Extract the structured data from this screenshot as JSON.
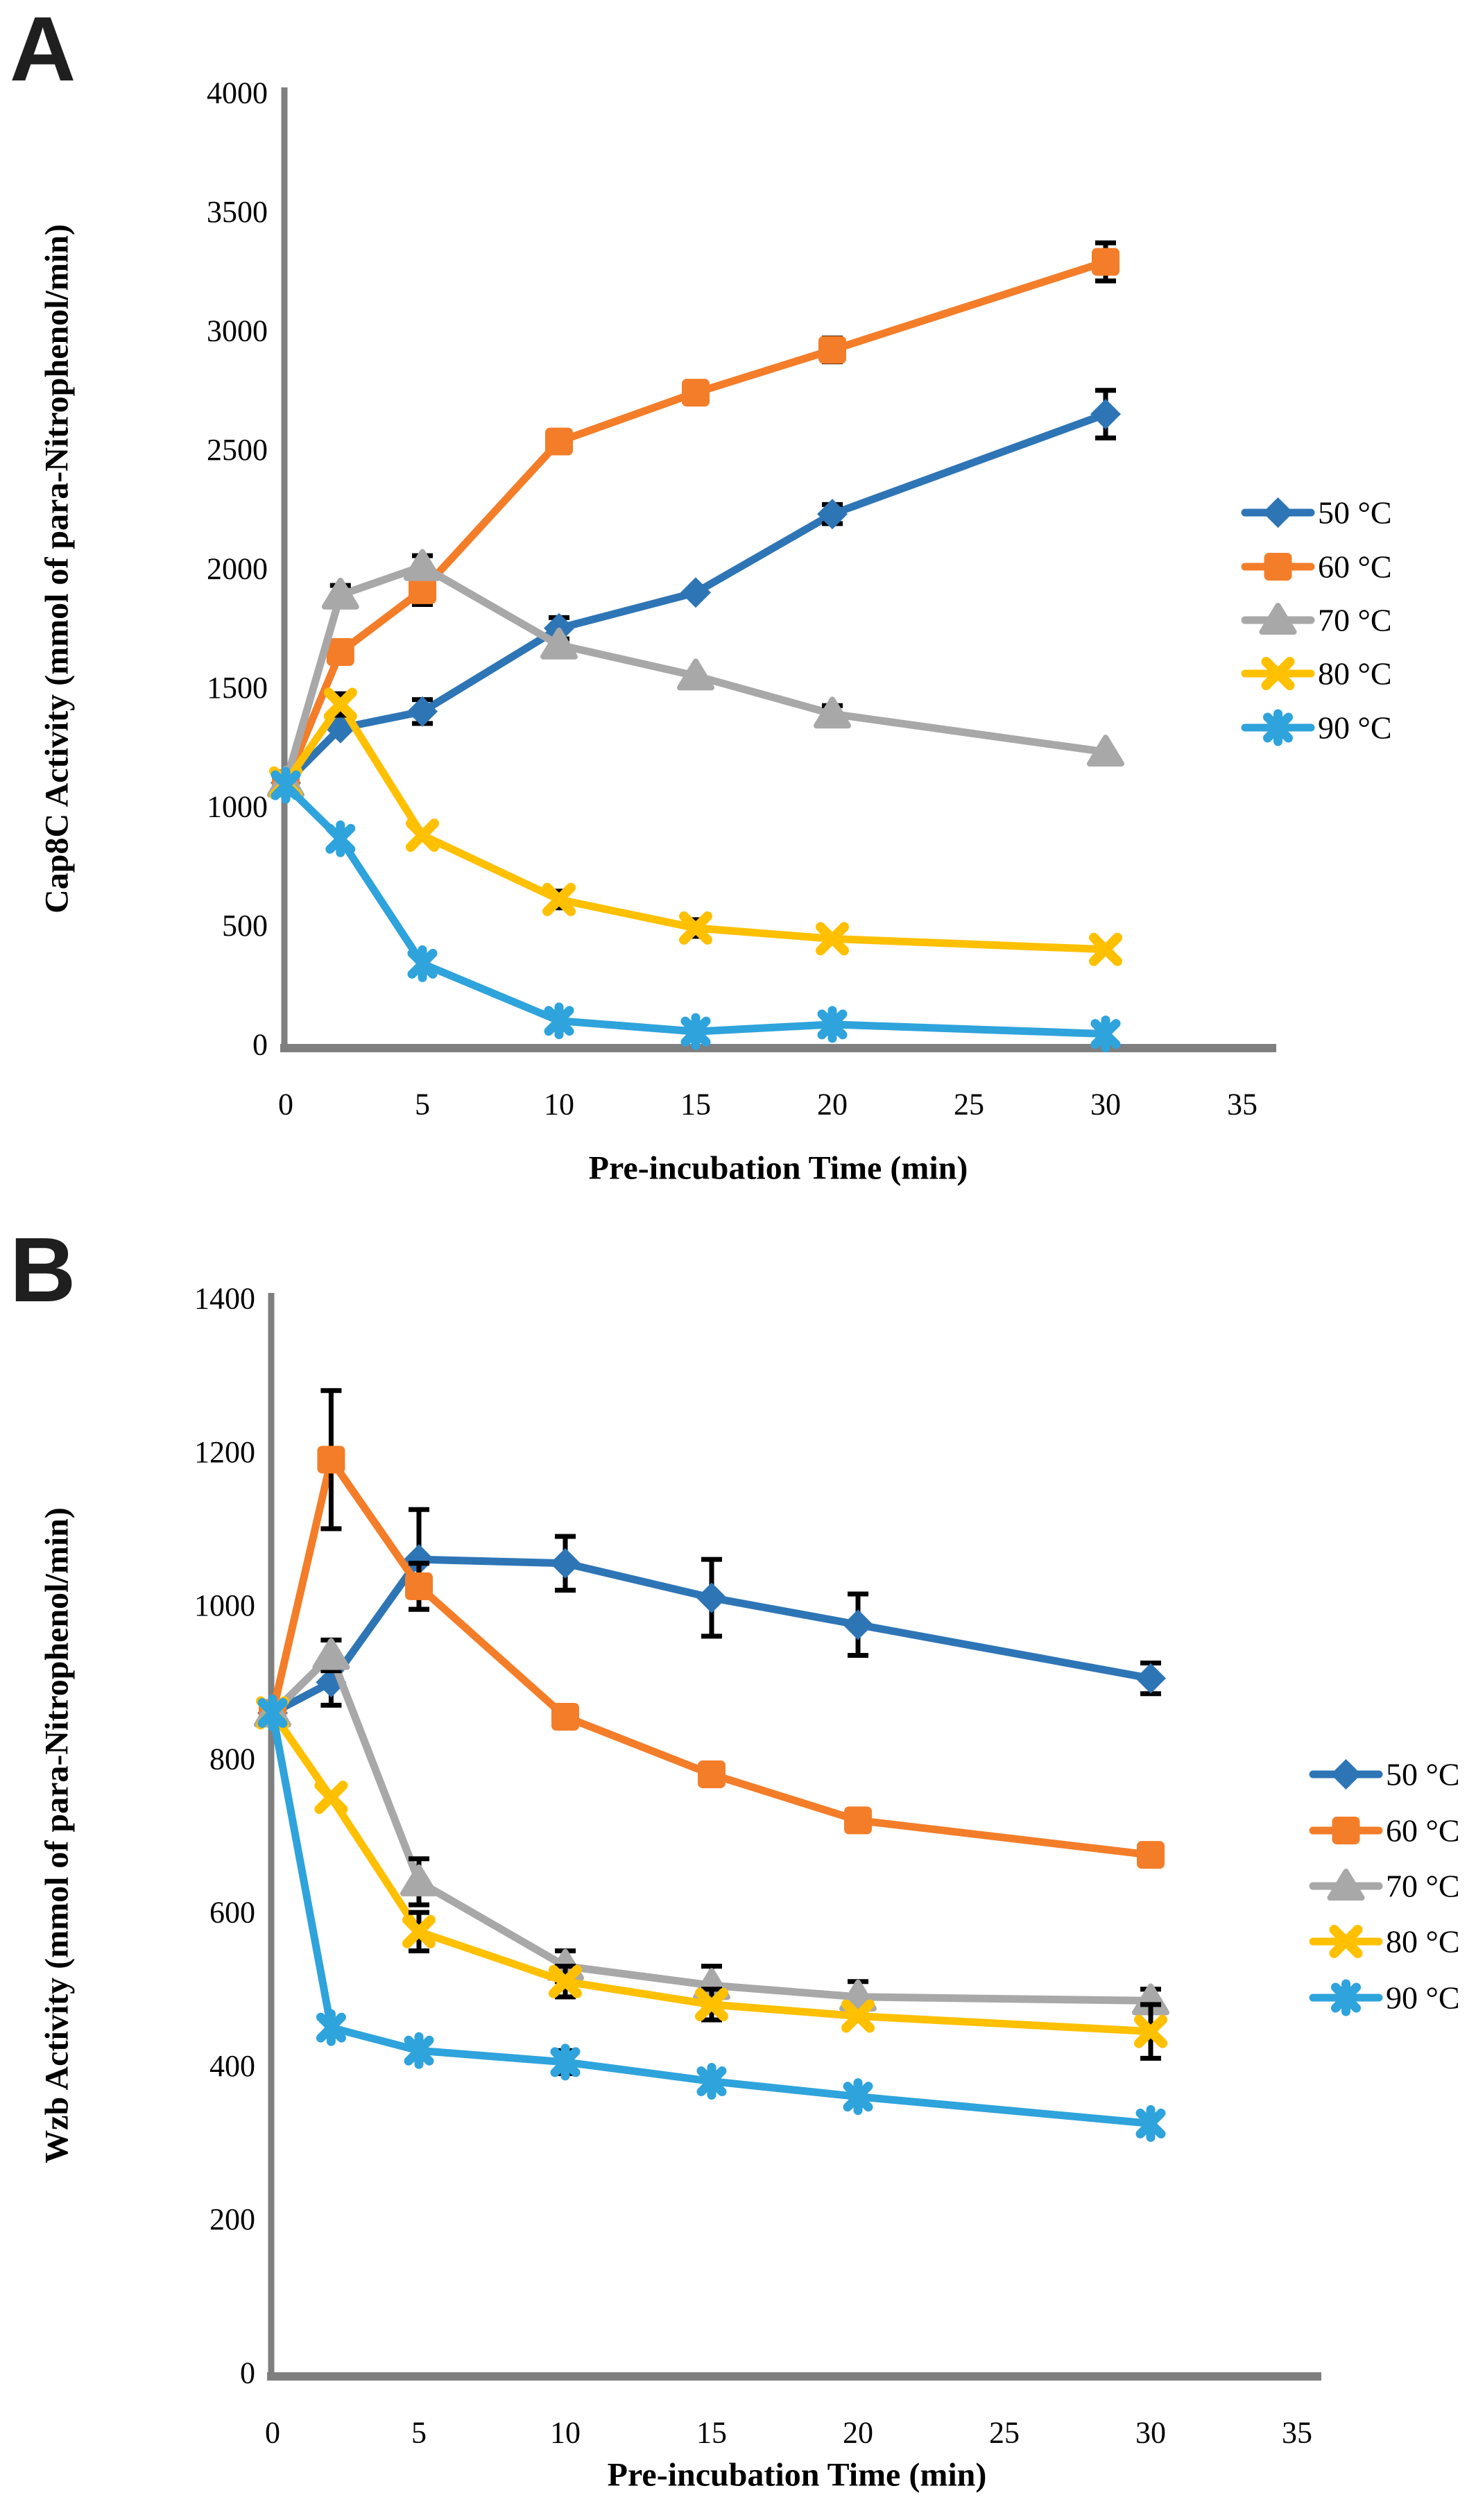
{
  "figure": {
    "background": "#ffffff",
    "axis_color": "#7f7f7f",
    "error_bar_color": "#000000"
  },
  "panels": [
    {
      "label": "A",
      "chart_data": {
        "type": "line",
        "x": [
          0,
          2,
          5,
          10,
          15,
          20,
          30
        ],
        "xlabel": "Pre-incubation Time (min)",
        "ylabel": "Cap8C Activity (mmol of para-Nitrophenol/min)",
        "xlim": [
          0,
          35
        ],
        "ylim": [
          0,
          4000
        ],
        "xticks": [
          0,
          5,
          10,
          15,
          20,
          25,
          30,
          35
        ],
        "yticks": [
          0,
          500,
          1000,
          1500,
          2000,
          2500,
          3000,
          3500,
          4000
        ],
        "grid": false,
        "legend_position": "right",
        "series": [
          {
            "name": "50 °C",
            "marker": "diamond",
            "color": "#2E75B6",
            "values": [
              1100,
              1330,
              1400,
              1750,
              1900,
              2230,
              2650
            ],
            "errors": [
              0,
              0,
              50,
              45,
              0,
              40,
              100
            ]
          },
          {
            "name": "60 °C",
            "marker": "square",
            "color": "#F47D29",
            "values": [
              1100,
              1650,
              1910,
              2535,
              2740,
              2920,
              3290
            ],
            "errors": [
              0,
              0,
              60,
              40,
              0,
              50,
              80
            ]
          },
          {
            "name": "70 °C",
            "marker": "triangle",
            "color": "#A8A8A8",
            "values": [
              1100,
              1890,
              2010,
              1680,
              1550,
              1390,
              1230
            ],
            "errors": [
              0,
              40,
              45,
              0,
              0,
              35,
              0
            ]
          },
          {
            "name": "80 °C",
            "marker": "x",
            "color": "#FFC000",
            "values": [
              1100,
              1430,
              880,
              610,
              490,
              445,
              400
            ],
            "errors": [
              0,
              45,
              0,
              35,
              35,
              0,
              0
            ]
          },
          {
            "name": "90 °C",
            "marker": "asterisk",
            "color": "#2EA3DC",
            "values": [
              1090,
              865,
              340,
              100,
              55,
              85,
              45
            ],
            "errors": [
              0,
              0,
              0,
              0,
              0,
              0,
              0
            ]
          }
        ]
      }
    },
    {
      "label": "B",
      "chart_data": {
        "type": "line",
        "x": [
          0,
          2,
          5,
          10,
          15,
          20,
          30
        ],
        "xlabel": "Pre-incubation Time (min)",
        "ylabel": "Wzb Activity (mmol of para-Nitrophenol/min)",
        "xlim": [
          0,
          35
        ],
        "ylim": [
          0,
          1400
        ],
        "xticks": [
          0,
          5,
          10,
          15,
          20,
          25,
          30,
          35
        ],
        "yticks": [
          0,
          200,
          400,
          600,
          800,
          1000,
          1200,
          1400
        ],
        "grid": false,
        "legend_position": "right",
        "series": [
          {
            "name": "50 °C",
            "marker": "diamond",
            "color": "#2E75B6",
            "values": [
              860,
              900,
              1060,
              1055,
              1010,
              975,
              905
            ],
            "errors": [
              0,
              30,
              65,
              35,
              50,
              40,
              20
            ]
          },
          {
            "name": "60 °C",
            "marker": "square",
            "color": "#F47D29",
            "values": [
              860,
              1190,
              1025,
              855,
              780,
              720,
              675
            ],
            "errors": [
              0,
              90,
              30,
              0,
              0,
              0,
              0
            ]
          },
          {
            "name": "70 °C",
            "marker": "triangle",
            "color": "#A8A8A8",
            "values": [
              860,
              935,
              640,
              530,
              505,
              490,
              485
            ],
            "errors": [
              0,
              20,
              30,
              20,
              25,
              20,
              15
            ]
          },
          {
            "name": "80 °C",
            "marker": "x",
            "color": "#FFC000",
            "values": [
              860,
              750,
              575,
              510,
              480,
              465,
              445
            ],
            "errors": [
              0,
              0,
              25,
              20,
              20,
              0,
              35
            ]
          },
          {
            "name": "90 °C",
            "marker": "asterisk",
            "color": "#2EA3DC",
            "values": [
              860,
              450,
              420,
              405,
              380,
              360,
              325
            ],
            "errors": [
              0,
              0,
              0,
              15,
              0,
              0,
              0
            ]
          }
        ]
      }
    }
  ]
}
